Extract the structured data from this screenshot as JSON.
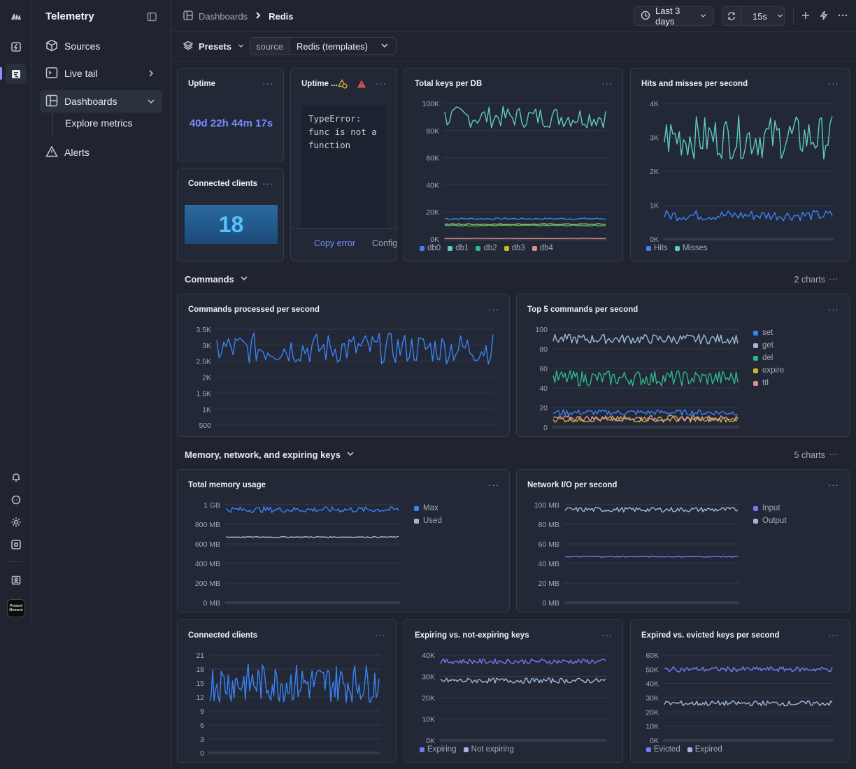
{
  "app": {
    "title": "Telemetry"
  },
  "rail": {
    "icons": [
      "logo-icon",
      "bolt-icon",
      "logs-icon",
      "bell-icon",
      "chat-icon",
      "sun-icon",
      "command-icon",
      "user-badge-icon"
    ],
    "avatar_text": "Present Moment"
  },
  "sidebar": {
    "items": [
      {
        "label": "Sources",
        "icon": "cube-icon"
      },
      {
        "label": "Live tail",
        "icon": "terminal-icon"
      },
      {
        "label": "Dashboards",
        "icon": "dashboard-icon"
      },
      {
        "label": "Explore metrics"
      },
      {
        "label": "Alerts",
        "icon": "warning-icon"
      }
    ]
  },
  "topbar": {
    "breadcrumb": [
      "Dashboards",
      "Redis"
    ],
    "time_range": "Last 3 days",
    "refresh_interval": "15s"
  },
  "filters": {
    "presets_label": "Presets",
    "source_key": "source",
    "source_value": "Redis (templates)"
  },
  "panels": {
    "uptime": {
      "title": "Uptime",
      "value": "40d 22h 44m 17s"
    },
    "uptime_err": {
      "title": "Uptime ...",
      "error": "TypeError: func is not a function",
      "copy": "Copy error",
      "config": "Config"
    },
    "clients_stat": {
      "title": "Connected clients",
      "value": "18"
    },
    "total_keys": {
      "title": "Total keys per DB"
    },
    "hits_misses": {
      "title": "Hits and misses per second"
    },
    "commands": {
      "title": "Commands processed per second"
    },
    "top5": {
      "title": "Top 5 commands per second"
    },
    "memory": {
      "title": "Total memory usage"
    },
    "network": {
      "title": "Network I/O per second"
    },
    "clients": {
      "title": "Connected clients"
    },
    "expiring": {
      "title": "Expiring vs. not-expiring keys"
    },
    "expired": {
      "title": "Expired vs. evicted keys per second"
    }
  },
  "sections": {
    "commands": {
      "label": "Commands",
      "count": "2 charts"
    },
    "memory": {
      "label": "Memory, network, and expiring keys",
      "count": "5 charts"
    }
  },
  "colors": {
    "blue": "#3b82f6",
    "cyan": "#5fc9c6",
    "green": "#2fb586",
    "yellow": "#c7b82b",
    "pink": "#d98f8f",
    "lightblue": "#9fb8d9",
    "periwinkle": "#6f7cf5"
  },
  "chart_data": [
    {
      "id": "total_keys",
      "type": "line",
      "yticks": [
        "100K",
        "80K",
        "60K",
        "40K",
        "20K",
        "0K"
      ],
      "ylim": [
        0,
        100000
      ],
      "series": [
        {
          "name": "db0",
          "color": "#3b82f6",
          "values": [
            15000
          ]
        },
        {
          "name": "db1",
          "color": "#5fc9c6",
          "values": [
            90000
          ]
        },
        {
          "name": "db2",
          "color": "#2fb586",
          "values": [
            10000
          ]
        },
        {
          "name": "db3",
          "color": "#c7b82b",
          "values": [
            11000
          ]
        },
        {
          "name": "db4",
          "color": "#d98f8f",
          "values": [
            500
          ]
        }
      ]
    },
    {
      "id": "hits_misses",
      "type": "line",
      "yticks": [
        "4K",
        "3K",
        "2K",
        "1K",
        "0K"
      ],
      "ylim": [
        0,
        4000
      ],
      "series": [
        {
          "name": "Hits",
          "color": "#3b82f6",
          "values": [
            700
          ]
        },
        {
          "name": "Misses",
          "color": "#5fc9c6",
          "values": [
            3000
          ]
        }
      ]
    },
    {
      "id": "commands",
      "type": "line",
      "yticks": [
        "3.5K",
        "3K",
        "2.5K",
        "2K",
        "1.5K",
        "1K",
        "500",
        "0"
      ],
      "ylim": [
        0,
        3500
      ],
      "series": [
        {
          "name": "commands",
          "color": "#3b82f6",
          "values": [
            2900
          ]
        }
      ]
    },
    {
      "id": "top5",
      "type": "line",
      "yticks": [
        "100",
        "80",
        "60",
        "40",
        "20",
        "0"
      ],
      "ylim": [
        0,
        100
      ],
      "series": [
        {
          "name": "set",
          "color": "#3b82f6",
          "values": [
            15
          ]
        },
        {
          "name": "get",
          "color": "#9fb8d9",
          "values": [
            90
          ]
        },
        {
          "name": "del",
          "color": "#2fb586",
          "values": [
            50
          ]
        },
        {
          "name": "expire",
          "color": "#c7b82b",
          "values": [
            8
          ]
        },
        {
          "name": "ttl",
          "color": "#d98f8f",
          "values": [
            9
          ]
        }
      ]
    },
    {
      "id": "memory",
      "type": "line",
      "yticks": [
        "1 GB",
        "800 MB",
        "600 MB",
        "400 MB",
        "200 MB",
        "0 MB"
      ],
      "ylim": [
        0,
        1000
      ],
      "series": [
        {
          "name": "Max",
          "color": "#3b82f6",
          "values": [
            950
          ]
        },
        {
          "name": "Used",
          "color": "#9fb8d9",
          "values": [
            670
          ]
        }
      ]
    },
    {
      "id": "network",
      "type": "line",
      "yticks": [
        "100 MB",
        "80 MB",
        "60 MB",
        "40 MB",
        "20 MB",
        "0 MB"
      ],
      "ylim": [
        0,
        100
      ],
      "series": [
        {
          "name": "Input",
          "color": "#6f7cf5",
          "values": [
            47
          ]
        },
        {
          "name": "Output",
          "color": "#9fb8d9",
          "values": [
            95
          ]
        }
      ]
    },
    {
      "id": "clients",
      "type": "line",
      "yticks": [
        "21",
        "18",
        "15",
        "12",
        "9",
        "6",
        "3",
        "0"
      ],
      "ylim": [
        0,
        21
      ],
      "series": [
        {
          "name": "clients",
          "color": "#3b82f6",
          "values": [
            15
          ]
        }
      ]
    },
    {
      "id": "expiring",
      "type": "line",
      "yticks": [
        "40K",
        "30K",
        "20K",
        "10K",
        "0K"
      ],
      "ylim": [
        0,
        40000
      ],
      "series": [
        {
          "name": "Expiring",
          "color": "#6f7cf5",
          "values": [
            37000
          ]
        },
        {
          "name": "Not expiring",
          "color": "#9fb8d9",
          "values": [
            28000
          ]
        }
      ]
    },
    {
      "id": "expired",
      "type": "line",
      "yticks": [
        "60K",
        "50K",
        "40K",
        "30K",
        "20K",
        "10K",
        "0K"
      ],
      "ylim": [
        0,
        60000
      ],
      "series": [
        {
          "name": "Evicted",
          "color": "#6f7cf5",
          "values": [
            50000
          ]
        },
        {
          "name": "Expired",
          "color": "#9fb8d9",
          "values": [
            26000
          ]
        }
      ]
    }
  ]
}
